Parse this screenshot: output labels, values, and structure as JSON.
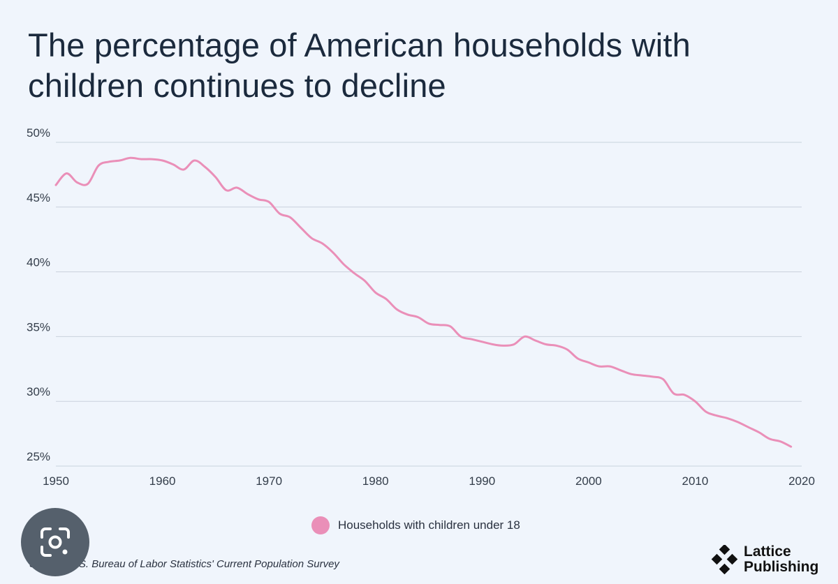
{
  "title_lines": [
    "The percentage of American households with",
    "children continues to decline"
  ],
  "legend": {
    "label": "Households with children under 18",
    "color": "#ea8fb8"
  },
  "source": "Source: U.S. Bureau of Labor Statistics' Current Population Survey",
  "logo": {
    "line1": "Lattice",
    "line2": "Publishing"
  },
  "overlay": {
    "icon": "google-lens-icon"
  },
  "chart_data": {
    "type": "line",
    "title": "The percentage of American households with children continues to decline",
    "xlabel": "",
    "ylabel": "",
    "xlim": [
      1950,
      2020
    ],
    "ylim": [
      25,
      50
    ],
    "x_ticks": [
      1950,
      1960,
      1970,
      1980,
      1990,
      2000,
      2010,
      2020
    ],
    "y_ticks": [
      25,
      30,
      35,
      40,
      45,
      50
    ],
    "y_tick_labels": [
      "25%",
      "30%",
      "35%",
      "40%",
      "45%",
      "50%"
    ],
    "grid": "horizontal",
    "legend_position": "bottom-center",
    "series": [
      {
        "name": "Households with children under 18",
        "color": "#ea8fb8",
        "x": [
          1950,
          1951,
          1952,
          1953,
          1954,
          1955,
          1956,
          1957,
          1958,
          1959,
          1960,
          1961,
          1962,
          1963,
          1964,
          1965,
          1966,
          1967,
          1968,
          1969,
          1970,
          1971,
          1972,
          1973,
          1974,
          1975,
          1976,
          1977,
          1978,
          1979,
          1980,
          1981,
          1982,
          1983,
          1984,
          1985,
          1986,
          1987,
          1988,
          1989,
          1990,
          1991,
          1992,
          1993,
          1994,
          1995,
          1996,
          1997,
          1998,
          1999,
          2000,
          2001,
          2002,
          2003,
          2004,
          2005,
          2006,
          2007,
          2008,
          2009,
          2010,
          2011,
          2012,
          2013,
          2014,
          2015,
          2016,
          2017,
          2018,
          2019
        ],
        "values": [
          46.7,
          47.6,
          46.9,
          46.8,
          48.2,
          48.5,
          48.6,
          48.8,
          48.7,
          48.7,
          48.6,
          48.3,
          47.9,
          48.6,
          48.1,
          47.3,
          46.3,
          46.5,
          46.0,
          45.6,
          45.4,
          44.5,
          44.2,
          43.4,
          42.6,
          42.2,
          41.5,
          40.6,
          39.9,
          39.3,
          38.4,
          37.9,
          37.1,
          36.7,
          36.5,
          36.0,
          35.9,
          35.8,
          35.0,
          34.8,
          34.6,
          34.4,
          34.3,
          34.4,
          35.0,
          34.7,
          34.4,
          34.3,
          34.0,
          33.3,
          33.0,
          32.7,
          32.7,
          32.4,
          32.1,
          32.0,
          31.9,
          31.7,
          30.6,
          30.5,
          30.0,
          29.2,
          28.9,
          28.7,
          28.4,
          28.0,
          27.6,
          27.1,
          26.9,
          26.5
        ]
      }
    ]
  }
}
